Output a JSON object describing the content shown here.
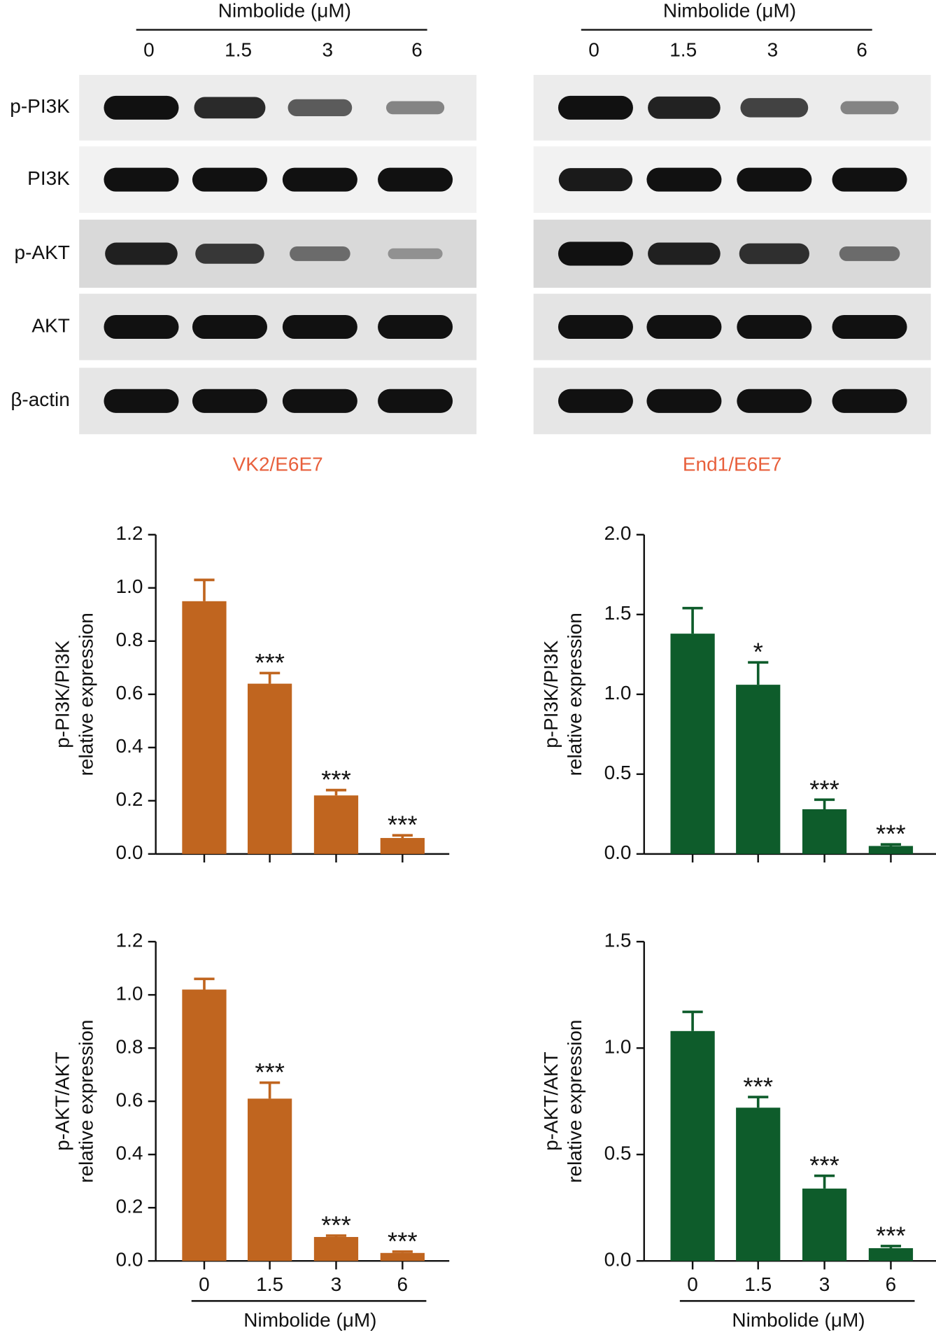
{
  "blot_rows": [
    "p-PI3K",
    "PI3K",
    "p-AKT",
    "AKT",
    "β-actin"
  ],
  "blots": [
    {
      "treatment": "Nimbolide (μM)",
      "lanes": [
        "0",
        "1.5",
        "3",
        "6"
      ],
      "cell_line": "VK2/E6E7"
    },
    {
      "treatment": "Nimbolide (μM)",
      "lanes": [
        "0",
        "1.5",
        "3",
        "6"
      ],
      "cell_line": "End1/E6E7"
    }
  ],
  "chart_data": [
    {
      "type": "bar",
      "ylabel": [
        "p-PI3K/PI3K",
        "relative expression"
      ],
      "categories": [
        null,
        null,
        null,
        null
      ],
      "values": [
        0.95,
        0.64,
        0.22,
        0.06
      ],
      "errors": [
        0.08,
        0.04,
        0.02,
        0.01
      ],
      "annotations": [
        null,
        "***",
        "***",
        "***"
      ],
      "color": "#c0651f",
      "ylim": [
        0,
        1.2
      ],
      "yticks": [
        {
          "value": 0,
          "label": "0.0"
        },
        0.2,
        0.4,
        0.6,
        0.8,
        {
          "value": 1,
          "label": "1.0"
        },
        1.2
      ]
    },
    {
      "type": "bar",
      "ylabel": [
        "p-PI3K/PI3K",
        "relative expression"
      ],
      "categories": [
        null,
        null,
        null,
        null
      ],
      "values": [
        1.38,
        1.06,
        0.28,
        0.05
      ],
      "errors": [
        0.16,
        0.14,
        0.06,
        0.01
      ],
      "annotations": [
        null,
        "*",
        "***",
        "***"
      ],
      "color": "#0e5c2b",
      "ylim": [
        0,
        2
      ],
      "yticks": [
        {
          "value": 0,
          "label": "0.0"
        },
        0.5,
        {
          "value": 1,
          "label": "1.0"
        },
        1.5,
        {
          "value": 2,
          "label": "2.0"
        }
      ]
    },
    {
      "type": "bar",
      "ylabel": [
        "p-AKT/AKT",
        "relative expression"
      ],
      "categories": [
        "0",
        "1.5",
        "3",
        "6"
      ],
      "xlabel": "Nimbolide (μM)",
      "values": [
        1.02,
        0.61,
        0.09,
        0.03
      ],
      "errors": [
        0.04,
        0.06,
        0.005,
        0.005
      ],
      "annotations": [
        null,
        "***",
        "***",
        "***"
      ],
      "color": "#c0651f",
      "ylim": [
        0,
        1.2
      ],
      "yticks": [
        {
          "value": 0,
          "label": "0.0"
        },
        0.2,
        0.4,
        0.6,
        0.8,
        {
          "value": 1,
          "label": "1.0"
        },
        1.2
      ]
    },
    {
      "type": "bar",
      "ylabel": [
        "p-AKT/AKT",
        "relative expression"
      ],
      "categories": [
        "0",
        "1.5",
        "3",
        "6"
      ],
      "xlabel": "Nimbolide (μM)",
      "values": [
        1.08,
        0.72,
        0.34,
        0.06
      ],
      "errors": [
        0.09,
        0.05,
        0.06,
        0.01
      ],
      "annotations": [
        null,
        "***",
        "***",
        "***"
      ],
      "color": "#0e5c2b",
      "ylim": [
        0,
        1.5
      ],
      "yticks": [
        {
          "value": 0,
          "label": "0.0"
        },
        0.5,
        {
          "value": 1,
          "label": "1.0"
        },
        1.5
      ]
    }
  ]
}
